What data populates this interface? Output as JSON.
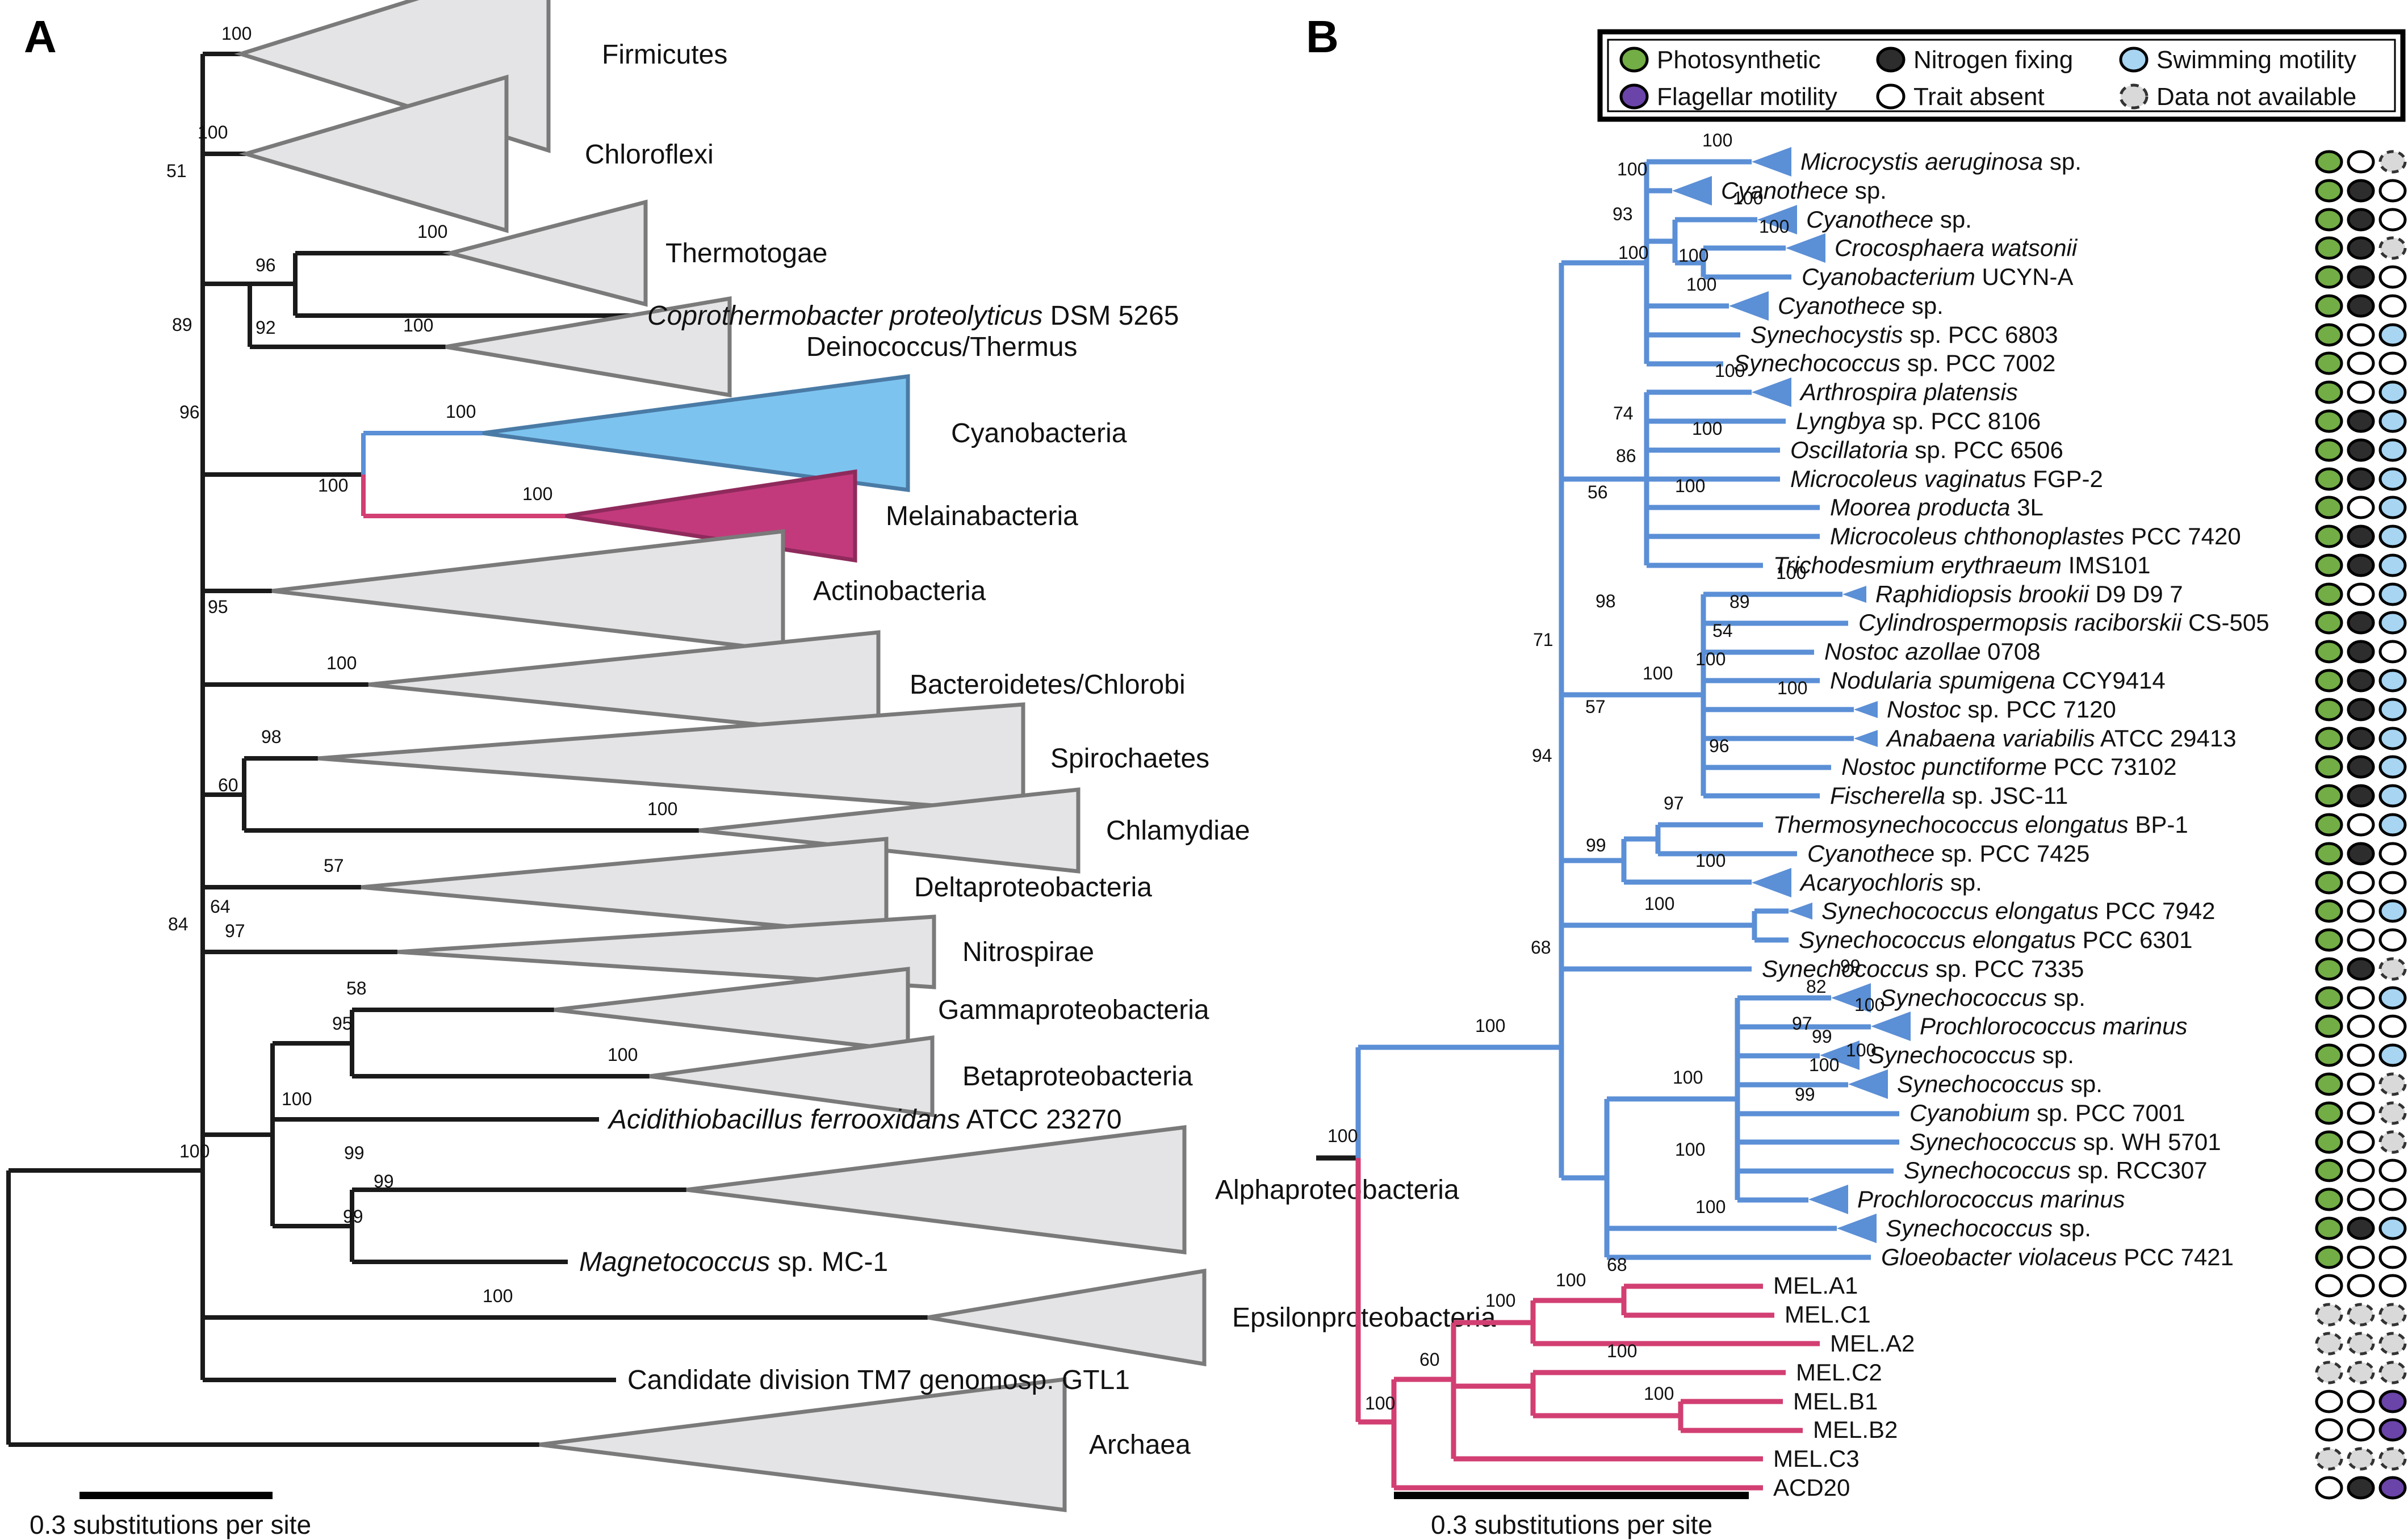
{
  "figure": {
    "panel_a_label": "A",
    "panel_b_label": "B"
  },
  "colors": {
    "photosynthetic": "#72ad45",
    "nitrogen_fixing": "#2d2d2d",
    "swimming_motility": "#a7d5f2",
    "flagellar_motility": "#6a44a8",
    "trait_absent": "#ffffff",
    "data_not_available": "#d9d9d9",
    "cyanobacteria_branch": "#5b8fd6",
    "melainabacteria_branch": "#d23f72",
    "cyanobacteria_fill": "#7cc4ef",
    "melainabacteria_fill": "#c23a7c",
    "collapsed_clade_fill": "#e4e4e6",
    "collapsed_clade_stroke": "#7a7a7a",
    "branch_black": "#1a1a1a"
  },
  "legend": {
    "items": [
      {
        "key": "G",
        "label": "Photosynthetic"
      },
      {
        "key": "B",
        "label": "Nitrogen fixing"
      },
      {
        "key": "S",
        "label": "Swimming motility"
      },
      {
        "key": "P",
        "label": "Flagellar motility"
      },
      {
        "key": "W",
        "label": "Trait absent"
      },
      {
        "key": "D",
        "label": "Data not available"
      }
    ]
  },
  "panel_a": {
    "scale_bar_label": "0.3 substitutions per site",
    "taxa": [
      {
        "italic": "",
        "roman": "Firmicutes"
      },
      {
        "italic": "",
        "roman": "Chloroflexi"
      },
      {
        "italic": "",
        "roman": "Thermotogae"
      },
      {
        "italic": "Coprothermobacter proteolyticus",
        "roman": " DSM 5265"
      },
      {
        "italic": "",
        "roman": "Deinococcus/Thermus"
      },
      {
        "italic": "",
        "roman": "Cyanobacteria"
      },
      {
        "italic": "",
        "roman": "Melainabacteria"
      },
      {
        "italic": "",
        "roman": "Actinobacteria"
      },
      {
        "italic": "",
        "roman": "Bacteroidetes/Chlorobi"
      },
      {
        "italic": "",
        "roman": "Spirochaetes"
      },
      {
        "italic": "",
        "roman": "Chlamydiae"
      },
      {
        "italic": "",
        "roman": "Deltaproteobacteria"
      },
      {
        "italic": "",
        "roman": "Nitrospirae"
      },
      {
        "italic": "",
        "roman": "Gammaproteobacteria"
      },
      {
        "italic": "",
        "roman": "Betaproteobacteria"
      },
      {
        "italic": "Acidithiobacillus ferrooxidans",
        "roman": " ATCC 23270"
      },
      {
        "italic": "",
        "roman": "Alphaproteobacteria"
      },
      {
        "italic": "Magnetococcus",
        "roman": " sp. MC-1"
      },
      {
        "italic": "",
        "roman": "Epsilonproteobacteria"
      },
      {
        "italic": "",
        "roman": "Candidate division TM7 genomosp. GTL1"
      },
      {
        "italic": "",
        "roman": "Archaea"
      }
    ],
    "bootstraps": [
      "100",
      "100",
      "51",
      "100",
      "96",
      "92",
      "89",
      "100",
      "96",
      "100",
      "100",
      "100",
      "95",
      "100",
      "98",
      "60",
      "100",
      "57",
      "64",
      "84",
      "97",
      "58",
      "95",
      "100",
      "100",
      "99",
      "99",
      "99",
      "100",
      "100"
    ]
  },
  "panel_b": {
    "scale_bar_label": "0.3 substitutions per site",
    "taxa": [
      {
        "italic": "Microcystis aeruginosa",
        "roman": " sp.",
        "traits": [
          "G",
          "W",
          "D"
        ]
      },
      {
        "italic": "Cyanothece",
        "roman": " sp.",
        "traits": [
          "G",
          "B",
          "W"
        ]
      },
      {
        "italic": "Cyanothece",
        "roman": " sp.",
        "traits": [
          "G",
          "B",
          "W"
        ]
      },
      {
        "italic": "Crocosphaera watsonii",
        "roman": "",
        "traits": [
          "G",
          "B",
          "D"
        ]
      },
      {
        "italic": "Cyanobacterium",
        "roman": " UCYN-A",
        "traits": [
          "G",
          "B",
          "W"
        ]
      },
      {
        "italic": "Cyanothece",
        "roman": " sp.",
        "traits": [
          "G",
          "B",
          "W"
        ]
      },
      {
        "italic": "Synechocystis",
        "roman": " sp. PCC 6803",
        "traits": [
          "G",
          "W",
          "S"
        ]
      },
      {
        "italic": "Synechococcus",
        "roman": " sp. PCC 7002",
        "traits": [
          "G",
          "W",
          "W"
        ]
      },
      {
        "italic": "Arthrospira platensis",
        "roman": "",
        "traits": [
          "G",
          "W",
          "S"
        ]
      },
      {
        "italic": "Lyngbya",
        "roman": " sp. PCC 8106",
        "traits": [
          "G",
          "B",
          "S"
        ]
      },
      {
        "italic": "Oscillatoria",
        "roman": " sp. PCC 6506",
        "traits": [
          "G",
          "B",
          "S"
        ]
      },
      {
        "italic": "Microcoleus vaginatus",
        "roman": " FGP-2",
        "traits": [
          "G",
          "B",
          "S"
        ]
      },
      {
        "italic": "Moorea producta",
        "roman": " 3L",
        "traits": [
          "G",
          "W",
          "S"
        ]
      },
      {
        "italic": "Microcoleus chthonoplastes",
        "roman": " PCC 7420",
        "traits": [
          "G",
          "B",
          "S"
        ]
      },
      {
        "italic": "Trichodesmium erythraeum",
        "roman": " IMS101",
        "traits": [
          "G",
          "B",
          "S"
        ]
      },
      {
        "italic": "Raphidiopsis brookii",
        "roman": " D9 D9 7",
        "traits": [
          "G",
          "W",
          "S"
        ]
      },
      {
        "italic": "Cylindrospermopsis raciborskii",
        "roman": " CS-505",
        "traits": [
          "G",
          "B",
          "S"
        ]
      },
      {
        "italic": "Nostoc azollae",
        "roman": " 0708",
        "traits": [
          "G",
          "B",
          "W"
        ]
      },
      {
        "italic": "Nodularia spumigena",
        "roman": " CCY9414",
        "traits": [
          "G",
          "B",
          "S"
        ]
      },
      {
        "italic": "Nostoc",
        "roman": " sp. PCC 7120",
        "traits": [
          "G",
          "B",
          "S"
        ]
      },
      {
        "italic": "Anabaena variabilis",
        "roman": " ATCC 29413",
        "traits": [
          "G",
          "B",
          "S"
        ]
      },
      {
        "italic": "Nostoc punctiforme",
        "roman": " PCC 73102",
        "traits": [
          "G",
          "B",
          "S"
        ]
      },
      {
        "italic": "Fischerella",
        "roman": " sp. JSC-11",
        "traits": [
          "G",
          "B",
          "S"
        ]
      },
      {
        "italic": "Thermosynechococcus elongatus",
        "roman": " BP-1",
        "traits": [
          "G",
          "W",
          "S"
        ]
      },
      {
        "italic": "Cyanothece",
        "roman": " sp. PCC 7425",
        "traits": [
          "G",
          "B",
          "W"
        ]
      },
      {
        "italic": "Acaryochloris",
        "roman": " sp.",
        "traits": [
          "G",
          "W",
          "W"
        ]
      },
      {
        "italic": "Synechococcus elongatus",
        "roman": " PCC 7942",
        "traits": [
          "G",
          "W",
          "S"
        ]
      },
      {
        "italic": "Synechococcus elongatus",
        "roman": " PCC 6301",
        "traits": [
          "G",
          "W",
          "W"
        ]
      },
      {
        "italic": "Synechococcus",
        "roman": " sp. PCC 7335",
        "traits": [
          "G",
          "B",
          "D"
        ]
      },
      {
        "italic": "Synechococcus",
        "roman": " sp.",
        "traits": [
          "G",
          "W",
          "S"
        ]
      },
      {
        "italic": "Prochlorococcus marinus",
        "roman": "",
        "traits": [
          "G",
          "W",
          "W"
        ]
      },
      {
        "italic": "Synechococcus",
        "roman": " sp.",
        "traits": [
          "G",
          "W",
          "S"
        ]
      },
      {
        "italic": "Synechococcus",
        "roman": " sp.",
        "traits": [
          "G",
          "W",
          "D"
        ]
      },
      {
        "italic": "Cyanobium",
        "roman": " sp. PCC 7001",
        "traits": [
          "G",
          "W",
          "D"
        ]
      },
      {
        "italic": "Synechococcus",
        "roman": " sp. WH 5701",
        "traits": [
          "G",
          "W",
          "D"
        ]
      },
      {
        "italic": "Synechococcus",
        "roman": " sp. RCC307",
        "traits": [
          "G",
          "W",
          "W"
        ]
      },
      {
        "italic": "Prochlorococcus marinus",
        "roman": "",
        "traits": [
          "G",
          "W",
          "W"
        ]
      },
      {
        "italic": "Synechococcus",
        "roman": " sp.",
        "traits": [
          "G",
          "B",
          "S"
        ]
      },
      {
        "italic": "Gloeobacter violaceus",
        "roman": " PCC 7421",
        "traits": [
          "G",
          "W",
          "W"
        ]
      },
      {
        "italic": "",
        "roman": "MEL.A1",
        "traits": [
          "W",
          "W",
          "W"
        ]
      },
      {
        "italic": "",
        "roman": "MEL.C1",
        "traits": [
          "D",
          "D",
          "D"
        ]
      },
      {
        "italic": "",
        "roman": "MEL.A2",
        "traits": [
          "D",
          "D",
          "D"
        ]
      },
      {
        "italic": "",
        "roman": "MEL.C2",
        "traits": [
          "D",
          "D",
          "D"
        ]
      },
      {
        "italic": "",
        "roman": "MEL.B1",
        "traits": [
          "W",
          "W",
          "P"
        ]
      },
      {
        "italic": "",
        "roman": "MEL.B2",
        "traits": [
          "W",
          "W",
          "P"
        ]
      },
      {
        "italic": "",
        "roman": "MEL.C3",
        "traits": [
          "D",
          "D",
          "D"
        ]
      },
      {
        "italic": "",
        "roman": "ACD20",
        "traits": [
          "W",
          "B",
          "P"
        ]
      }
    ],
    "bootstraps": [
      "100",
      "100",
      "100",
      "100",
      "93",
      "100",
      "100",
      "100",
      "100",
      "100",
      "100",
      "74",
      "86",
      "100",
      "56",
      "100",
      "98",
      "71",
      "100",
      "57",
      "100",
      "89",
      "54",
      "100",
      "100",
      "96",
      "94",
      "99",
      "97",
      "100",
      "100",
      "68",
      "100",
      "99",
      "82",
      "97",
      "100",
      "99",
      "100",
      "100",
      "99",
      "100",
      "100",
      "68",
      "100",
      "100",
      "60",
      "100",
      "100",
      "100"
    ]
  }
}
